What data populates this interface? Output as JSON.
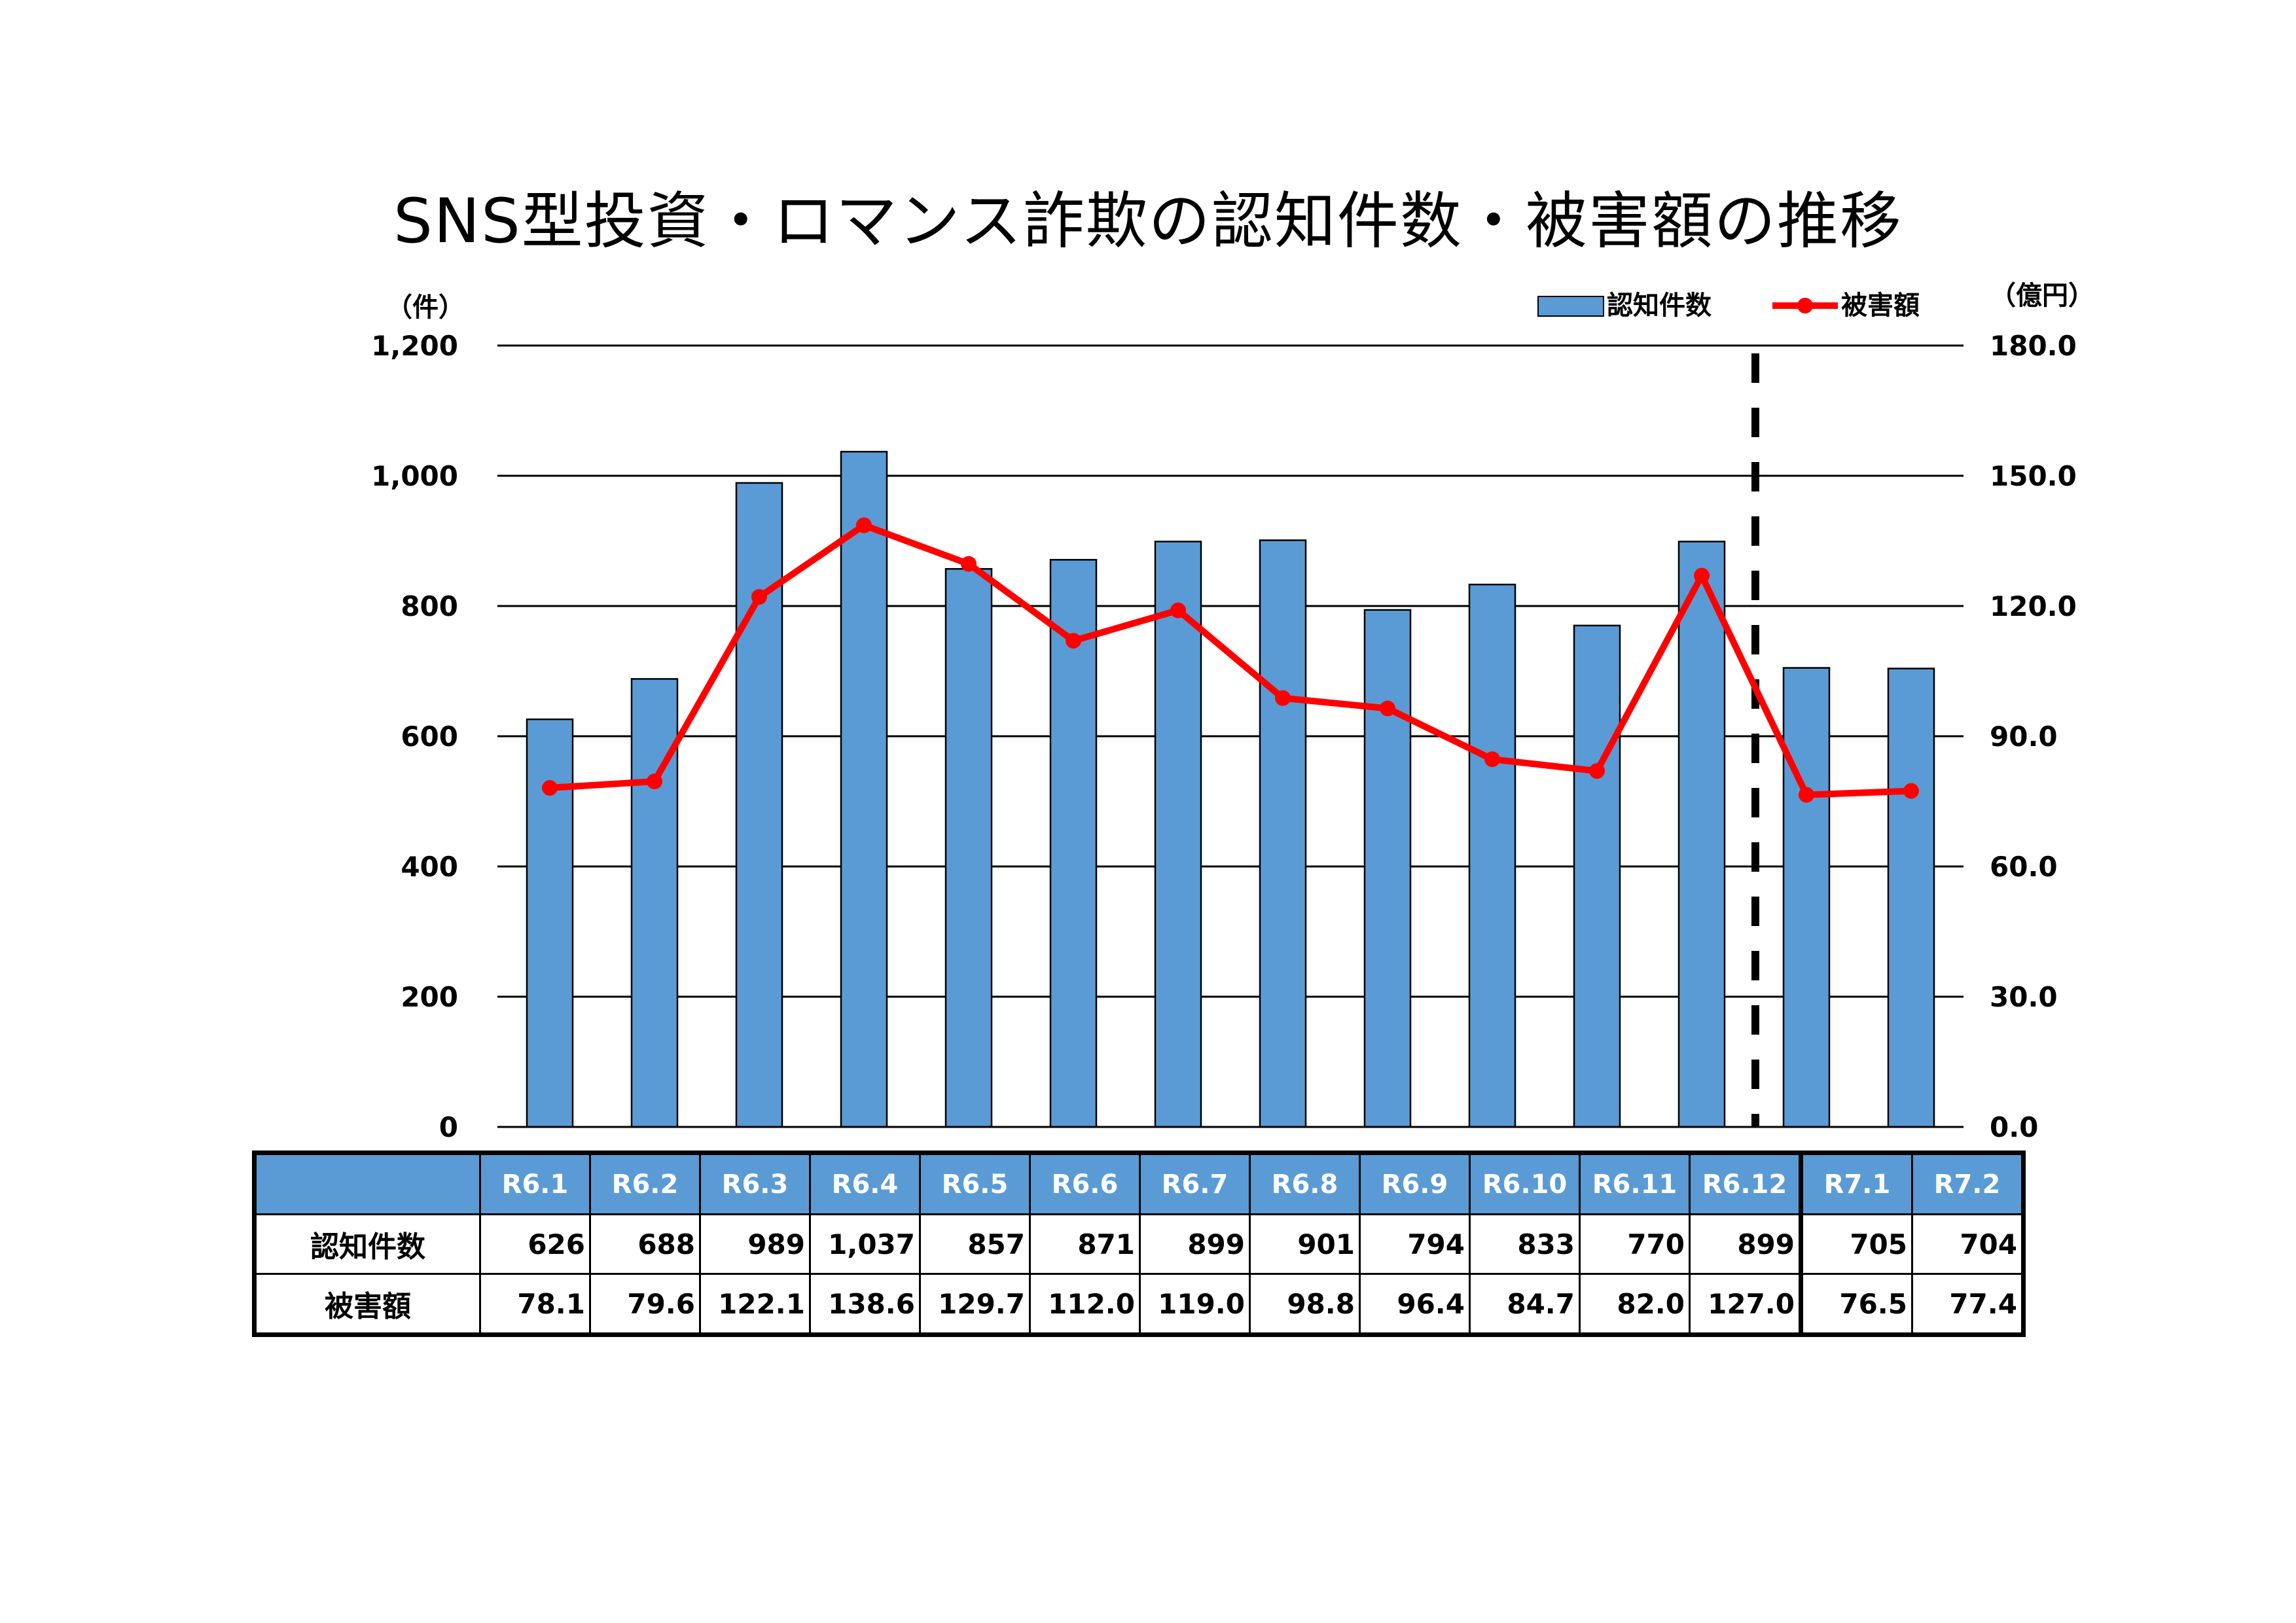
{
  "title": "SNS型投資・ロマンス詐欺の認知件数・被害額の推移",
  "chart_data": {
    "type": "bar",
    "title": "SNS型投資・ロマンス詐欺の認知件数・被害額の推移",
    "categories": [
      "R6.1",
      "R6.2",
      "R6.3",
      "R6.4",
      "R6.5",
      "R6.6",
      "R6.7",
      "R6.8",
      "R6.9",
      "R6.10",
      "R6.11",
      "R6.12",
      "R7.1",
      "R7.2"
    ],
    "y_left": {
      "unit": "（件）",
      "ylim": [
        0,
        1200
      ],
      "ticks": [
        "0",
        "200",
        "400",
        "600",
        "800",
        "1,000",
        "1,200"
      ]
    },
    "y_right": {
      "unit": "（億円）",
      "ylim": [
        0,
        180
      ],
      "ticks": [
        "0.0",
        "30.0",
        "60.0",
        "90.0",
        "120.0",
        "150.0",
        "180.0"
      ]
    },
    "grid": true,
    "legend_position": "top-right",
    "series": [
      {
        "name": "認知件数",
        "type": "bar",
        "axis": "left",
        "color": "#5b9bd5",
        "values": [
          626,
          688,
          989,
          1037,
          857,
          871,
          899,
          901,
          794,
          833,
          770,
          899,
          705,
          704
        ]
      },
      {
        "name": "被害額",
        "type": "line",
        "axis": "right",
        "color": "#ff0000",
        "values": [
          78.1,
          79.6,
          122.1,
          138.6,
          129.7,
          112.0,
          119.0,
          98.8,
          96.4,
          84.7,
          82.0,
          127.0,
          76.5,
          77.4
        ]
      }
    ],
    "divider_after_category": "R6.12"
  },
  "table": {
    "rows": [
      {
        "label": "認知件数",
        "cells": [
          "626",
          "688",
          "989",
          "1,037",
          "857",
          "871",
          "899",
          "901",
          "794",
          "833",
          "770",
          "899",
          "705",
          "704"
        ]
      },
      {
        "label": "被害額",
        "cells": [
          "78.1",
          "79.6",
          "122.1",
          "138.6",
          "129.7",
          "112.0",
          "119.0",
          "98.8",
          "96.4",
          "84.7",
          "82.0",
          "127.0",
          "76.5",
          "77.4"
        ]
      }
    ]
  }
}
